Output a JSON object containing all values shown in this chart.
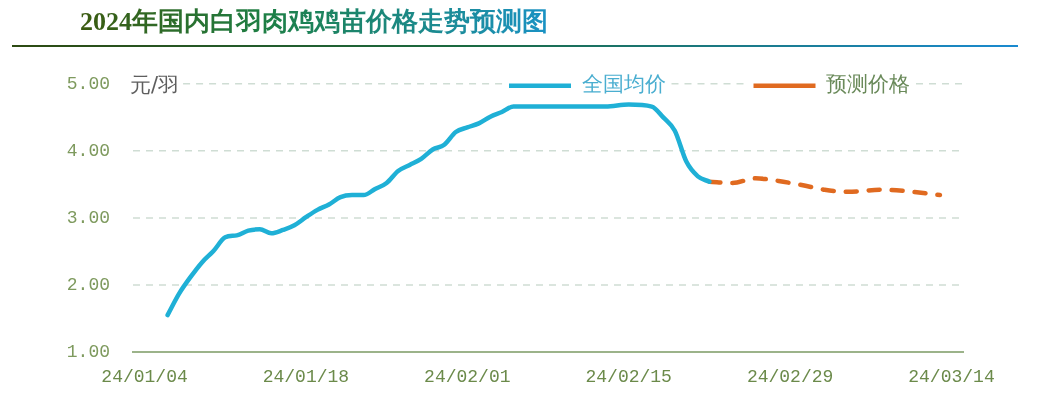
{
  "chart_data": {
    "type": "line",
    "title": "2024年国内白羽肉鸡鸡苗价格走势预测图",
    "ylabel": "元/羽",
    "series": [
      {
        "name": "全国均价",
        "color": "#1fb0d6",
        "x": [
          "2024-01-06",
          "2024-01-07",
          "2024-01-08",
          "2024-01-09",
          "2024-01-10",
          "2024-01-11",
          "2024-01-12",
          "2024-01-13",
          "2024-01-14",
          "2024-01-15",
          "2024-01-16",
          "2024-01-17",
          "2024-01-18",
          "2024-01-19",
          "2024-01-20",
          "2024-01-21",
          "2024-01-22",
          "2024-01-23",
          "2024-01-24",
          "2024-01-25",
          "2024-01-26",
          "2024-01-27",
          "2024-01-28",
          "2024-01-29",
          "2024-01-30",
          "2024-01-31",
          "2024-02-01",
          "2024-02-02",
          "2024-02-03",
          "2024-02-04",
          "2024-02-05",
          "2024-02-13",
          "2024-02-15",
          "2024-02-17",
          "2024-02-18",
          "2024-02-19",
          "2024-02-20",
          "2024-02-21",
          "2024-02-22"
        ],
        "values": [
          1.55,
          1.87,
          2.12,
          2.34,
          2.51,
          2.71,
          2.74,
          2.81,
          2.83,
          2.77,
          2.82,
          2.89,
          3.01,
          3.12,
          3.2,
          3.31,
          3.34,
          3.34,
          3.43,
          3.52,
          3.7,
          3.79,
          3.88,
          4.02,
          4.09,
          4.28,
          4.35,
          4.41,
          4.51,
          4.58,
          4.66,
          4.66,
          4.69,
          4.66,
          4.5,
          4.3,
          3.84,
          3.62,
          3.54
        ]
      },
      {
        "name": "预测价格",
        "color": "#e06a20",
        "line_style": "dashed",
        "x": [
          "2024-02-22",
          "2024-02-24",
          "2024-02-26",
          "2024-02-28",
          "2024-03-01",
          "2024-03-03",
          "2024-03-05",
          "2024-03-08",
          "2024-03-10",
          "2024-03-13"
        ],
        "values": [
          3.54,
          3.52,
          3.59,
          3.55,
          3.49,
          3.42,
          3.39,
          3.42,
          3.4,
          3.34
        ]
      }
    ],
    "xlim": [
      "2024-01-03",
      "2024-03-15"
    ],
    "xticks": [
      {
        "value": "2024-01-04",
        "label": "24/01/04"
      },
      {
        "value": "2024-01-18",
        "label": "24/01/18"
      },
      {
        "value": "2024-02-01",
        "label": "24/02/01"
      },
      {
        "value": "2024-02-15",
        "label": "24/02/15"
      },
      {
        "value": "2024-02-29",
        "label": "24/02/29"
      },
      {
        "value": "2024-03-14",
        "label": "24/03/14"
      }
    ],
    "ylim": [
      1,
      5
    ],
    "yticks": [
      {
        "value": 1,
        "label": "1.00"
      },
      {
        "value": 2,
        "label": "2.00"
      },
      {
        "value": 3,
        "label": "3.00"
      },
      {
        "value": 4,
        "label": "4.00"
      },
      {
        "value": 5,
        "label": "5.00"
      }
    ],
    "grid": "y",
    "legend": "top right"
  }
}
